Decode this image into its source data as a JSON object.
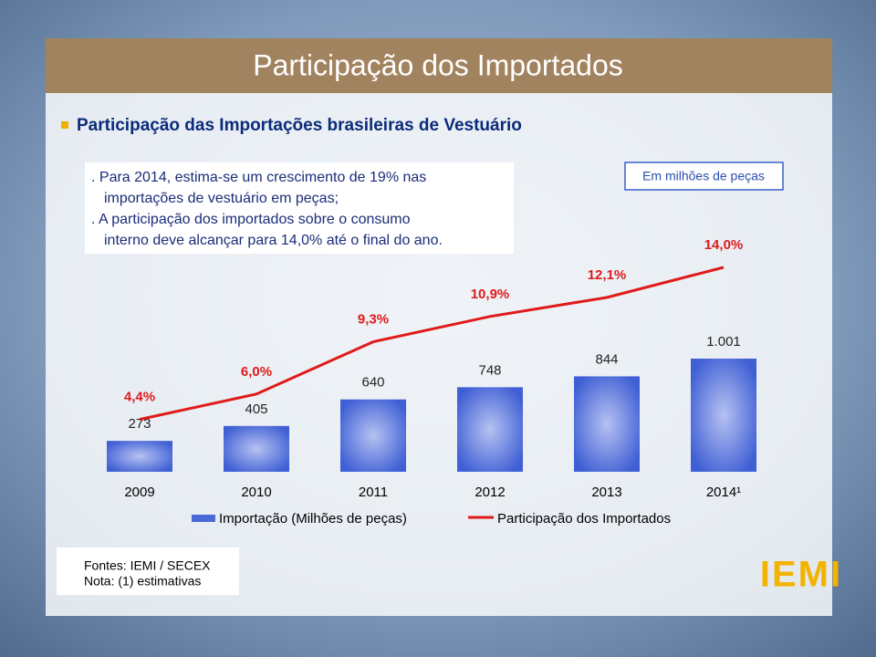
{
  "slide": {
    "title": "Participação dos Importados",
    "subtitle": "Participação das Importações brasileiras de Vestuário",
    "text_box": [
      ". Para 2014, estima-se um crescimento de 19% nas",
      "importações de vestuário em peças;",
      ". A participação dos importados sobre o consumo",
      "interno deve alcançar para 14,0% até o final do ano."
    ],
    "unit_note": "Em milhões de peças",
    "footnotes": [
      "Fontes: IEMI / SECEX",
      "Nota: (1) estimativas"
    ],
    "logo": "IEMI"
  },
  "chart_data": {
    "type": "bar",
    "categories": [
      "2009",
      "2010",
      "2011",
      "2012",
      "2013",
      "2014¹"
    ],
    "series": [
      {
        "name": "Importação (Milhões de peças)",
        "type": "bar",
        "color": "#4a68d8",
        "values": [
          273,
          405,
          640,
          748,
          844,
          1001
        ],
        "value_labels": [
          "273",
          "405",
          "640",
          "748",
          "844",
          "1.001"
        ]
      },
      {
        "name": "Participação dos Importados",
        "type": "line",
        "color": "#e01a1a",
        "axis": "y2",
        "values": [
          4.4,
          6.0,
          9.3,
          10.9,
          12.1,
          14.0
        ],
        "value_labels": [
          "4,4%",
          "6,0%",
          "9,3%",
          "10,9%",
          "12,1%",
          "14,0%"
        ]
      }
    ]
  }
}
